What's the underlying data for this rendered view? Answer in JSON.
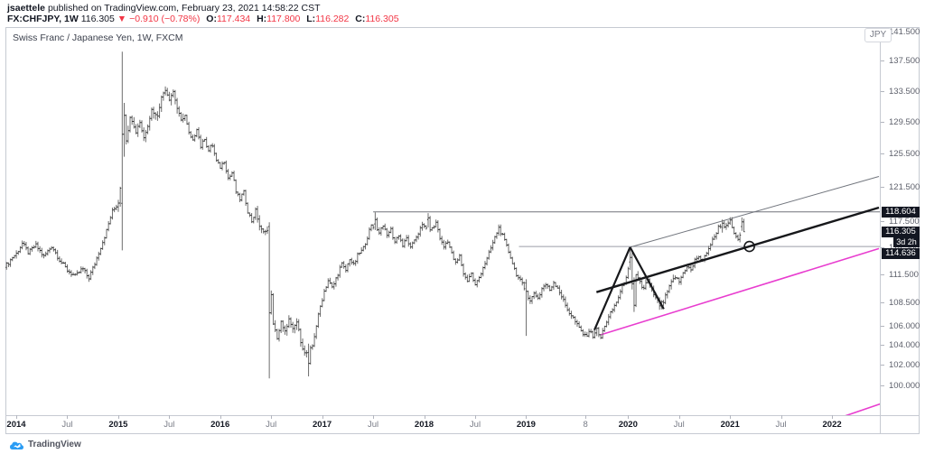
{
  "header": {
    "byline_author": "jsaettele",
    "byline_rest": " published on TradingView.com, February 23, 2021 14:58:22 CST",
    "symbol_label": "FX:CHFJPY, 1W",
    "last_price": "116.305",
    "change_arrow": "▼",
    "change_text": "−0.910 (−0.78%)",
    "ohlc": [
      {
        "label": "O:",
        "value": "117.434"
      },
      {
        "label": "H:",
        "value": "117.800"
      },
      {
        "label": "L:",
        "value": "116.282"
      },
      {
        "label": "C:",
        "value": "116.305"
      }
    ]
  },
  "chart": {
    "legend": "Swiss Franc / Japanese Yen, 1W, FXCM",
    "currency_button": "JPY",
    "countdown": "3d 2h"
  },
  "footer": {
    "logo_text": "TradingView"
  },
  "colors": {
    "red": "#f23645",
    "chip_bg": "#131722",
    "bar_range": "#6e6e6e",
    "bar_tick": "#2f2f2f",
    "hline1": "#70747c",
    "hline2": "#9b9ea6",
    "channel_top": "#72767e",
    "channel_median": "#17181b",
    "pink": "#e83dcf",
    "axis_text": "#5d606b",
    "border": "#c6cad2"
  },
  "chart_data": {
    "type": "bar",
    "subtype": "weekly-ohlc-bars",
    "title": "Swiss Franc / Japanese Yen, 1W, FXCM",
    "symbol": "FX:CHFJPY",
    "timeframe": "1W",
    "last_bar": {
      "open": 117.434,
      "high": 117.8,
      "low": 116.282,
      "close": 116.305
    },
    "price_scale": {
      "type": "log",
      "unit": "JPY",
      "domain": [
        97.13,
        142.2
      ],
      "ticks": [
        {
          "label": "141.500",
          "price": 141.5
        },
        {
          "label": "137.500",
          "price": 137.5
        },
        {
          "label": "133.500",
          "price": 133.5
        },
        {
          "label": "129.500",
          "price": 129.5
        },
        {
          "label": "125.500",
          "price": 125.5
        },
        {
          "label": "121.500",
          "price": 121.5
        },
        {
          "label": "117.500",
          "price": 117.5
        },
        {
          "label": "114.500",
          "price": 114.5
        },
        {
          "label": "111.500",
          "price": 111.5
        },
        {
          "label": "108.500",
          "price": 108.5
        },
        {
          "label": "106.000",
          "price": 106.0
        },
        {
          "label": "104.000",
          "price": 104.0
        },
        {
          "label": "102.000",
          "price": 102.0
        },
        {
          "label": "100.000",
          "price": 100.0
        }
      ],
      "price_labels": [
        {
          "label": "118.604",
          "price": 118.604
        },
        {
          "label": "116.305",
          "price": 116.305
        },
        {
          "label": "3d 2h",
          "price": null,
          "kind": "countdown"
        },
        {
          "label": "114.636",
          "price": 114.636
        }
      ]
    },
    "time_scale": {
      "domain": [
        2013.894,
        2022.469
      ],
      "ticks": [
        {
          "label": "2014",
          "t": 2014.0,
          "major": true
        },
        {
          "label": "Jul",
          "t": 2014.5
        },
        {
          "label": "2015",
          "t": 2015.0,
          "major": true
        },
        {
          "label": "Jul",
          "t": 2015.5
        },
        {
          "label": "2016",
          "t": 2016.0,
          "major": true
        },
        {
          "label": "Jul",
          "t": 2016.5
        },
        {
          "label": "2017",
          "t": 2017.0,
          "major": true
        },
        {
          "label": "Jul",
          "t": 2017.5
        },
        {
          "label": "2018",
          "t": 2018.0,
          "major": true
        },
        {
          "label": "Jul",
          "t": 2018.5
        },
        {
          "label": "2019",
          "t": 2019.0,
          "major": true
        },
        {
          "label": "8",
          "t": 2019.583
        },
        {
          "label": "2020",
          "t": 2020.0,
          "major": true
        },
        {
          "label": "Jul",
          "t": 2020.5
        },
        {
          "label": "2021",
          "t": 2021.0,
          "major": true
        },
        {
          "label": "Jul",
          "t": 2021.5
        },
        {
          "label": "2022",
          "t": 2022.0,
          "major": true
        }
      ]
    },
    "drawings": {
      "hlines": [
        {
          "name": "resistance-118.604",
          "price": 118.604,
          "from_t": 2017.5,
          "width": 1,
          "colorKey": "hline1"
        },
        {
          "name": "resistance-114.636",
          "price": 114.636,
          "from_t": 2018.93,
          "width": 1,
          "colorKey": "hline2"
        }
      ],
      "trendlines": [
        {
          "name": "channel-top",
          "points": [
            [
              2020.02,
              114.55
            ],
            [
              2022.46,
              122.8
            ]
          ],
          "width": 1,
          "colorKey": "channel_top"
        },
        {
          "name": "channel-median",
          "points": [
            [
              2019.69,
              109.6
            ],
            [
              2022.46,
              119.1
            ]
          ],
          "width": 2.4,
          "colorKey": "channel_median"
        },
        {
          "name": "channel-bottom",
          "points": [
            [
              2019.73,
              105.1
            ],
            [
              2022.46,
              114.4
            ]
          ],
          "width": 1.6,
          "colorKey": "pink"
        },
        {
          "name": "outer-pink-support",
          "points": [
            [
              2022.02,
              96.7
            ],
            [
              2022.47,
              98.2
            ]
          ],
          "width": 1.6,
          "colorKey": "pink"
        },
        {
          "name": "zigzag-left",
          "points": [
            [
              2019.67,
              105.6
            ],
            [
              2020.02,
              114.55
            ]
          ],
          "width": 2.2,
          "colorKey": "channel_median"
        },
        {
          "name": "zigzag-right",
          "points": [
            [
              2020.02,
              114.55
            ],
            [
              2020.35,
              107.8
            ]
          ],
          "width": 2.2,
          "colorKey": "channel_median"
        }
      ],
      "circle_marker": {
        "t": 2021.19,
        "price": 114.636,
        "r": 5.5
      }
    },
    "series_start_t": 2013.905,
    "weeks_per_year": 52,
    "bar_count": 377,
    "series_anchors": [
      [
        2013.91,
        112.6
      ],
      [
        2013.96,
        113.4
      ],
      [
        2014.0,
        113.8
      ],
      [
        2014.06,
        115.0
      ],
      [
        2014.12,
        113.9
      ],
      [
        2014.19,
        114.8
      ],
      [
        2014.27,
        113.5
      ],
      [
        2014.35,
        114.7
      ],
      [
        2014.42,
        113.2
      ],
      [
        2014.5,
        112.0
      ],
      [
        2014.58,
        111.3
      ],
      [
        2014.65,
        112.2
      ],
      [
        2014.71,
        111.1
      ],
      [
        2014.77,
        112.7
      ],
      [
        2014.81,
        114.0
      ],
      [
        2014.88,
        116.2
      ],
      [
        2014.94,
        118.6
      ],
      [
        2015.0,
        119.6
      ],
      [
        2015.08,
        127.2
      ],
      [
        2015.12,
        130.6
      ],
      [
        2015.17,
        128.1
      ],
      [
        2015.21,
        129.7
      ],
      [
        2015.25,
        127.5
      ],
      [
        2015.29,
        129.2
      ],
      [
        2015.33,
        131.2
      ],
      [
        2015.38,
        130.1
      ],
      [
        2015.42,
        132.5
      ],
      [
        2015.46,
        133.9
      ],
      [
        2015.5,
        132.5
      ],
      [
        2015.54,
        133.5
      ],
      [
        2015.58,
        131.2
      ],
      [
        2015.62,
        129.5
      ],
      [
        2015.65,
        130.7
      ],
      [
        2015.69,
        128.2
      ],
      [
        2015.73,
        127.0
      ],
      [
        2015.77,
        128.8
      ],
      [
        2015.81,
        126.4
      ],
      [
        2015.85,
        127.6
      ],
      [
        2015.88,
        125.8
      ],
      [
        2015.92,
        126.8
      ],
      [
        2015.96,
        124.7
      ],
      [
        2016.0,
        123.9
      ],
      [
        2016.04,
        124.7
      ],
      [
        2016.08,
        122.5
      ],
      [
        2016.12,
        123.3
      ],
      [
        2016.15,
        121.1
      ],
      [
        2016.19,
        120.0
      ],
      [
        2016.23,
        121.0
      ],
      [
        2016.27,
        118.7
      ],
      [
        2016.31,
        117.5
      ],
      [
        2016.35,
        118.8
      ],
      [
        2016.38,
        117.1
      ],
      [
        2016.42,
        116.1
      ],
      [
        2016.46,
        116.9
      ],
      [
        2016.52,
        106.1
      ],
      [
        2016.56,
        104.8
      ],
      [
        2016.6,
        106.5
      ],
      [
        2016.63,
        105.1
      ],
      [
        2016.67,
        106.8
      ],
      [
        2016.71,
        105.5
      ],
      [
        2016.75,
        106.5
      ],
      [
        2016.79,
        104.5
      ],
      [
        2016.83,
        103.1
      ],
      [
        2016.9,
        103.7
      ],
      [
        2016.94,
        105.9
      ],
      [
        2016.98,
        108.0
      ],
      [
        2017.02,
        109.7
      ],
      [
        2017.06,
        110.9
      ],
      [
        2017.1,
        110.0
      ],
      [
        2017.15,
        111.5
      ],
      [
        2017.19,
        112.7
      ],
      [
        2017.23,
        111.9
      ],
      [
        2017.27,
        113.3
      ],
      [
        2017.31,
        112.5
      ],
      [
        2017.35,
        113.7
      ],
      [
        2017.4,
        114.3
      ],
      [
        2017.44,
        115.6
      ],
      [
        2017.48,
        117.0
      ],
      [
        2017.56,
        116.3
      ],
      [
        2017.6,
        117.2
      ],
      [
        2017.63,
        115.7
      ],
      [
        2017.67,
        116.7
      ],
      [
        2017.71,
        115.1
      ],
      [
        2017.75,
        116.0
      ],
      [
        2017.79,
        114.7
      ],
      [
        2017.83,
        115.6
      ],
      [
        2017.87,
        114.3
      ],
      [
        2017.9,
        115.3
      ],
      [
        2017.94,
        116.1
      ],
      [
        2017.98,
        117.0
      ],
      [
        2018.08,
        116.6
      ],
      [
        2018.12,
        117.4
      ],
      [
        2018.15,
        115.8
      ],
      [
        2018.19,
        114.5
      ],
      [
        2018.23,
        115.4
      ],
      [
        2018.27,
        113.8
      ],
      [
        2018.31,
        112.7
      ],
      [
        2018.35,
        113.6
      ],
      [
        2018.38,
        111.8
      ],
      [
        2018.42,
        110.8
      ],
      [
        2018.46,
        111.7
      ],
      [
        2018.5,
        110.3
      ],
      [
        2018.54,
        111.2
      ],
      [
        2018.58,
        112.4
      ],
      [
        2018.62,
        113.3
      ],
      [
        2018.65,
        114.3
      ],
      [
        2018.69,
        115.5
      ],
      [
        2018.73,
        116.8
      ],
      [
        2018.77,
        115.8
      ],
      [
        2018.81,
        114.6
      ],
      [
        2018.85,
        113.4
      ],
      [
        2018.88,
        112.3
      ],
      [
        2018.92,
        111.2
      ],
      [
        2018.96,
        110.5
      ],
      [
        2019.04,
        108.6
      ],
      [
        2019.08,
        109.6
      ],
      [
        2019.12,
        108.9
      ],
      [
        2019.15,
        109.9
      ],
      [
        2019.19,
        110.5
      ],
      [
        2019.23,
        109.8
      ],
      [
        2019.27,
        110.7
      ],
      [
        2019.31,
        110.1
      ],
      [
        2019.35,
        109.1
      ],
      [
        2019.38,
        108.3
      ],
      [
        2019.42,
        107.5
      ],
      [
        2019.46,
        106.9
      ],
      [
        2019.5,
        106.1
      ],
      [
        2019.54,
        105.5
      ],
      [
        2019.58,
        104.9
      ],
      [
        2019.62,
        105.6
      ],
      [
        2019.65,
        104.9
      ],
      [
        2019.69,
        105.7
      ],
      [
        2019.73,
        104.7
      ],
      [
        2019.77,
        106.1
      ],
      [
        2019.81,
        106.9
      ],
      [
        2019.85,
        107.8
      ],
      [
        2019.88,
        108.4
      ],
      [
        2019.92,
        109.5
      ],
      [
        2019.96,
        110.6
      ],
      [
        2020.0,
        112.0
      ],
      [
        2020.1,
        111.2
      ],
      [
        2020.15,
        109.8
      ],
      [
        2020.19,
        111.0
      ],
      [
        2020.23,
        109.9
      ],
      [
        2020.27,
        108.9
      ],
      [
        2020.31,
        108.2
      ],
      [
        2020.35,
        108.6
      ],
      [
        2020.38,
        109.5
      ],
      [
        2020.42,
        110.5
      ],
      [
        2020.46,
        111.3
      ],
      [
        2020.5,
        110.7
      ],
      [
        2020.54,
        111.7
      ],
      [
        2020.58,
        112.5
      ],
      [
        2020.62,
        111.9
      ],
      [
        2020.65,
        113.0
      ],
      [
        2020.69,
        113.6
      ],
      [
        2020.73,
        112.9
      ],
      [
        2020.77,
        114.0
      ],
      [
        2020.81,
        114.9
      ],
      [
        2020.85,
        115.8
      ],
      [
        2020.88,
        116.7
      ],
      [
        2020.92,
        117.3
      ],
      [
        2020.96,
        116.8
      ],
      [
        2021.0,
        117.5
      ],
      [
        2021.04,
        116.1
      ],
      [
        2021.08,
        115.4
      ],
      [
        2021.12,
        116.6
      ],
      [
        2021.15,
        117.45
      ]
    ],
    "special_bars": {
      "59": {
        "o": 119.6,
        "h": 138.8,
        "l": 114.2,
        "c": 128.0
      },
      "60": {
        "o": 128.0,
        "h": 132.0,
        "l": 125.2,
        "c": 130.4
      },
      "134": {
        "o": 116.9,
        "h": 117.4,
        "l": 100.7,
        "c": 107.4
      },
      "154": {
        "o": 103.3,
        "h": 104.2,
        "l": 100.9,
        "c": 102.2
      },
      "188": {
        "o": 117.2,
        "h": 118.55,
        "l": 116.5,
        "c": 117.7
      },
      "215": {
        "o": 117.7,
        "h": 118.45,
        "l": 116.8,
        "c": 117.9
      },
      "265": {
        "o": 110.6,
        "h": 111.0,
        "l": 105.0,
        "c": 109.7
      },
      "318": {
        "o": 112.9,
        "h": 114.5,
        "l": 112.0,
        "c": 113.4
      },
      "319": {
        "o": 113.4,
        "h": 113.9,
        "l": 109.9,
        "c": 110.5
      },
      "320": {
        "o": 110.5,
        "h": 111.2,
        "l": 107.5,
        "c": 108.2
      },
      "365": {
        "o": 116.8,
        "h": 117.7,
        "l": 116.2,
        "c": 117.3
      },
      "375": {
        "o": 116.9,
        "h": 117.95,
        "l": 116.4,
        "c": 117.45
      },
      "376": {
        "o": 117.434,
        "h": 117.8,
        "l": 116.282,
        "c": 116.305
      }
    }
  }
}
